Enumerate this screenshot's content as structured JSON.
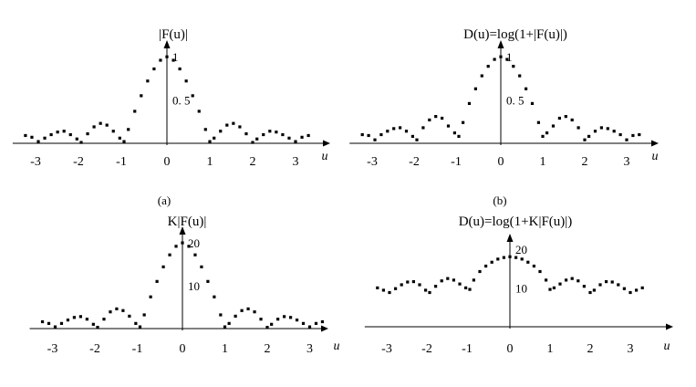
{
  "chart_data": [
    {
      "type": "scatter",
      "panel": "a",
      "title": "|F(u)|",
      "caption": "(a)",
      "xlabel": "u",
      "ylabel": "",
      "xticks": [
        "-3",
        "-2",
        "-1",
        "0",
        "1",
        "2",
        "3"
      ],
      "yticks": [
        {
          "value": 0.5,
          "label": "0. 5"
        },
        {
          "value": 1,
          "label": "1"
        }
      ],
      "xlim": [
        -3.3,
        3.3
      ],
      "ylim": [
        0,
        1.15
      ],
      "points": [
        {
          "x": -3.3,
          "y": 0.09
        },
        {
          "x": -3.15,
          "y": 0.07
        },
        {
          "x": -3.0,
          "y": 0.02
        },
        {
          "x": -2.85,
          "y": 0.06
        },
        {
          "x": -2.7,
          "y": 0.1
        },
        {
          "x": -2.55,
          "y": 0.13
        },
        {
          "x": -2.4,
          "y": 0.14
        },
        {
          "x": -2.25,
          "y": 0.1
        },
        {
          "x": -2.1,
          "y": 0.05
        },
        {
          "x": -2.0,
          "y": 0.01
        },
        {
          "x": -1.85,
          "y": 0.11
        },
        {
          "x": -1.7,
          "y": 0.19
        },
        {
          "x": -1.55,
          "y": 0.23
        },
        {
          "x": -1.4,
          "y": 0.21
        },
        {
          "x": -1.25,
          "y": 0.14
        },
        {
          "x": -1.1,
          "y": 0.06
        },
        {
          "x": -1.0,
          "y": 0.02
        },
        {
          "x": -0.9,
          "y": 0.16
        },
        {
          "x": -0.75,
          "y": 0.37
        },
        {
          "x": -0.6,
          "y": 0.55
        },
        {
          "x": -0.45,
          "y": 0.72
        },
        {
          "x": -0.3,
          "y": 0.86
        },
        {
          "x": -0.15,
          "y": 0.96
        },
        {
          "x": 0.0,
          "y": 1.0
        },
        {
          "x": 0.15,
          "y": 0.96
        },
        {
          "x": 0.3,
          "y": 0.86
        },
        {
          "x": 0.45,
          "y": 0.72
        },
        {
          "x": 0.6,
          "y": 0.55
        },
        {
          "x": 0.75,
          "y": 0.37
        },
        {
          "x": 0.9,
          "y": 0.16
        },
        {
          "x": 1.0,
          "y": 0.02
        },
        {
          "x": 1.1,
          "y": 0.06
        },
        {
          "x": 1.25,
          "y": 0.14
        },
        {
          "x": 1.4,
          "y": 0.21
        },
        {
          "x": 1.55,
          "y": 0.23
        },
        {
          "x": 1.7,
          "y": 0.19
        },
        {
          "x": 1.85,
          "y": 0.11
        },
        {
          "x": 2.0,
          "y": 0.01
        },
        {
          "x": 2.1,
          "y": 0.05
        },
        {
          "x": 2.25,
          "y": 0.1
        },
        {
          "x": 2.4,
          "y": 0.14
        },
        {
          "x": 2.55,
          "y": 0.13
        },
        {
          "x": 2.7,
          "y": 0.1
        },
        {
          "x": 2.85,
          "y": 0.06
        },
        {
          "x": 3.0,
          "y": 0.02
        },
        {
          "x": 3.15,
          "y": 0.07
        },
        {
          "x": 3.3,
          "y": 0.09
        }
      ]
    },
    {
      "type": "scatter",
      "panel": "b",
      "title": "D(u)=log(1+|F(u)|)",
      "caption": "(b)",
      "xlabel": "u",
      "ylabel": "",
      "xticks": [
        "-3",
        "-2",
        "-1",
        "0",
        "1",
        "2",
        "3"
      ],
      "yticks": [
        {
          "value": 0.5,
          "label": "0. 5"
        },
        {
          "value": 1,
          "label": "1"
        }
      ],
      "xlim": [
        -3.3,
        3.3
      ],
      "ylim": [
        0,
        1.15
      ],
      "points": [
        {
          "x": -3.3,
          "y": 0.1
        },
        {
          "x": -3.15,
          "y": 0.09
        },
        {
          "x": -3.0,
          "y": 0.04
        },
        {
          "x": -2.85,
          "y": 0.1
        },
        {
          "x": -2.7,
          "y": 0.14
        },
        {
          "x": -2.55,
          "y": 0.17
        },
        {
          "x": -2.4,
          "y": 0.18
        },
        {
          "x": -2.25,
          "y": 0.14
        },
        {
          "x": -2.1,
          "y": 0.08
        },
        {
          "x": -2.0,
          "y": 0.04
        },
        {
          "x": -1.85,
          "y": 0.18
        },
        {
          "x": -1.7,
          "y": 0.27
        },
        {
          "x": -1.55,
          "y": 0.31
        },
        {
          "x": -1.4,
          "y": 0.29
        },
        {
          "x": -1.25,
          "y": 0.2
        },
        {
          "x": -1.1,
          "y": 0.12
        },
        {
          "x": -1.0,
          "y": 0.08
        },
        {
          "x": -0.9,
          "y": 0.24
        },
        {
          "x": -0.75,
          "y": 0.46
        },
        {
          "x": -0.6,
          "y": 0.63
        },
        {
          "x": -0.45,
          "y": 0.78
        },
        {
          "x": -0.3,
          "y": 0.89
        },
        {
          "x": -0.15,
          "y": 0.97
        },
        {
          "x": 0.0,
          "y": 1.0
        },
        {
          "x": 0.15,
          "y": 0.97
        },
        {
          "x": 0.3,
          "y": 0.89
        },
        {
          "x": 0.45,
          "y": 0.78
        },
        {
          "x": 0.6,
          "y": 0.63
        },
        {
          "x": 0.75,
          "y": 0.46
        },
        {
          "x": 0.9,
          "y": 0.24
        },
        {
          "x": 1.0,
          "y": 0.08
        },
        {
          "x": 1.1,
          "y": 0.12
        },
        {
          "x": 1.25,
          "y": 0.2
        },
        {
          "x": 1.4,
          "y": 0.29
        },
        {
          "x": 1.55,
          "y": 0.31
        },
        {
          "x": 1.7,
          "y": 0.27
        },
        {
          "x": 1.85,
          "y": 0.18
        },
        {
          "x": 2.0,
          "y": 0.04
        },
        {
          "x": 2.1,
          "y": 0.08
        },
        {
          "x": 2.25,
          "y": 0.14
        },
        {
          "x": 2.4,
          "y": 0.18
        },
        {
          "x": 2.55,
          "y": 0.17
        },
        {
          "x": 2.7,
          "y": 0.14
        },
        {
          "x": 2.85,
          "y": 0.1
        },
        {
          "x": 3.0,
          "y": 0.04
        },
        {
          "x": 3.15,
          "y": 0.09
        },
        {
          "x": 3.3,
          "y": 0.1
        }
      ]
    },
    {
      "type": "scatter",
      "panel": "c",
      "title": "K|F(u)|",
      "caption": "",
      "xlabel": "u",
      "ylabel": "",
      "xticks": [
        "-3",
        "-2",
        "-1",
        "0",
        "1",
        "2",
        "3"
      ],
      "yticks": [
        {
          "value": 10,
          "label": "10"
        },
        {
          "value": 20,
          "label": "20"
        }
      ],
      "xlim": [
        -3.3,
        3.3
      ],
      "ylim": [
        0,
        23
      ],
      "points": [
        {
          "x": -3.3,
          "y": 1.6
        },
        {
          "x": -3.15,
          "y": 1.2
        },
        {
          "x": -3.0,
          "y": 0.4
        },
        {
          "x": -2.85,
          "y": 1.2
        },
        {
          "x": -2.7,
          "y": 2.0
        },
        {
          "x": -2.55,
          "y": 2.6
        },
        {
          "x": -2.4,
          "y": 2.8
        },
        {
          "x": -2.25,
          "y": 2.2
        },
        {
          "x": -2.1,
          "y": 1.0
        },
        {
          "x": -2.0,
          "y": 0.3
        },
        {
          "x": -1.85,
          "y": 2.2
        },
        {
          "x": -1.7,
          "y": 3.9
        },
        {
          "x": -1.55,
          "y": 4.6
        },
        {
          "x": -1.4,
          "y": 4.2
        },
        {
          "x": -1.25,
          "y": 2.9
        },
        {
          "x": -1.1,
          "y": 1.2
        },
        {
          "x": -1.0,
          "y": 0.4
        },
        {
          "x": -0.9,
          "y": 3.2
        },
        {
          "x": -0.75,
          "y": 7.4
        },
        {
          "x": -0.6,
          "y": 11.0
        },
        {
          "x": -0.45,
          "y": 14.4
        },
        {
          "x": -0.3,
          "y": 17.2
        },
        {
          "x": -0.15,
          "y": 19.2
        },
        {
          "x": 0.0,
          "y": 20.0
        },
        {
          "x": 0.15,
          "y": 19.2
        },
        {
          "x": 0.3,
          "y": 17.2
        },
        {
          "x": 0.45,
          "y": 14.4
        },
        {
          "x": 0.6,
          "y": 11.0
        },
        {
          "x": 0.75,
          "y": 7.4
        },
        {
          "x": 0.9,
          "y": 3.2
        },
        {
          "x": 1.0,
          "y": 0.4
        },
        {
          "x": 1.1,
          "y": 1.2
        },
        {
          "x": 1.25,
          "y": 2.9
        },
        {
          "x": 1.4,
          "y": 4.2
        },
        {
          "x": 1.55,
          "y": 4.6
        },
        {
          "x": 1.7,
          "y": 3.9
        },
        {
          "x": 1.85,
          "y": 2.2
        },
        {
          "x": 2.0,
          "y": 0.3
        },
        {
          "x": 2.1,
          "y": 1.0
        },
        {
          "x": 2.25,
          "y": 2.2
        },
        {
          "x": 2.4,
          "y": 2.8
        },
        {
          "x": 2.55,
          "y": 2.6
        },
        {
          "x": 2.7,
          "y": 2.0
        },
        {
          "x": 2.85,
          "y": 1.2
        },
        {
          "x": 3.0,
          "y": 0.4
        },
        {
          "x": 3.15,
          "y": 1.2
        },
        {
          "x": 3.3,
          "y": 1.6
        }
      ]
    },
    {
      "type": "scatter",
      "panel": "d",
      "title": "D(u)=log(1+K|F(u)|)",
      "caption": "",
      "xlabel": "u",
      "ylabel": "",
      "xticks": [
        "-3",
        "-2",
        "-1",
        "0",
        "1",
        "2",
        "3"
      ],
      "yticks": [
        {
          "value": 10,
          "label": "10"
        },
        {
          "value": 20,
          "label": "20"
        }
      ],
      "xlim": [
        -3.3,
        3.3
      ],
      "ylim": [
        0,
        23
      ],
      "points": [
        {
          "x": -3.3,
          "y": 10.0
        },
        {
          "x": -3.15,
          "y": 9.4
        },
        {
          "x": -3.0,
          "y": 8.8
        },
        {
          "x": -2.85,
          "y": 9.8
        },
        {
          "x": -2.7,
          "y": 10.8
        },
        {
          "x": -2.55,
          "y": 11.5
        },
        {
          "x": -2.4,
          "y": 11.6
        },
        {
          "x": -2.25,
          "y": 10.8
        },
        {
          "x": -2.1,
          "y": 9.4
        },
        {
          "x": -2.0,
          "y": 8.8
        },
        {
          "x": -1.85,
          "y": 10.4
        },
        {
          "x": -1.7,
          "y": 11.8
        },
        {
          "x": -1.55,
          "y": 12.4
        },
        {
          "x": -1.4,
          "y": 12.0
        },
        {
          "x": -1.25,
          "y": 11.0
        },
        {
          "x": -1.1,
          "y": 10.0
        },
        {
          "x": -1.0,
          "y": 9.6
        },
        {
          "x": -0.9,
          "y": 12.0
        },
        {
          "x": -0.75,
          "y": 14.2
        },
        {
          "x": -0.6,
          "y": 15.6
        },
        {
          "x": -0.45,
          "y": 16.6
        },
        {
          "x": -0.3,
          "y": 17.4
        },
        {
          "x": -0.15,
          "y": 17.8
        },
        {
          "x": 0.0,
          "y": 18.0
        },
        {
          "x": 0.15,
          "y": 17.8
        },
        {
          "x": 0.3,
          "y": 17.4
        },
        {
          "x": 0.45,
          "y": 16.6
        },
        {
          "x": 0.6,
          "y": 15.6
        },
        {
          "x": 0.75,
          "y": 14.2
        },
        {
          "x": 0.9,
          "y": 12.0
        },
        {
          "x": 1.0,
          "y": 9.6
        },
        {
          "x": 1.1,
          "y": 10.0
        },
        {
          "x": 1.25,
          "y": 11.0
        },
        {
          "x": 1.4,
          "y": 12.0
        },
        {
          "x": 1.55,
          "y": 12.4
        },
        {
          "x": 1.7,
          "y": 11.8
        },
        {
          "x": 1.85,
          "y": 10.4
        },
        {
          "x": 2.0,
          "y": 8.8
        },
        {
          "x": 2.1,
          "y": 9.4
        },
        {
          "x": 2.25,
          "y": 10.8
        },
        {
          "x": 2.4,
          "y": 11.6
        },
        {
          "x": 2.55,
          "y": 11.5
        },
        {
          "x": 2.7,
          "y": 10.8
        },
        {
          "x": 2.85,
          "y": 9.8
        },
        {
          "x": 3.0,
          "y": 8.8
        },
        {
          "x": 3.15,
          "y": 9.4
        },
        {
          "x": 3.3,
          "y": 10.0
        }
      ]
    }
  ]
}
